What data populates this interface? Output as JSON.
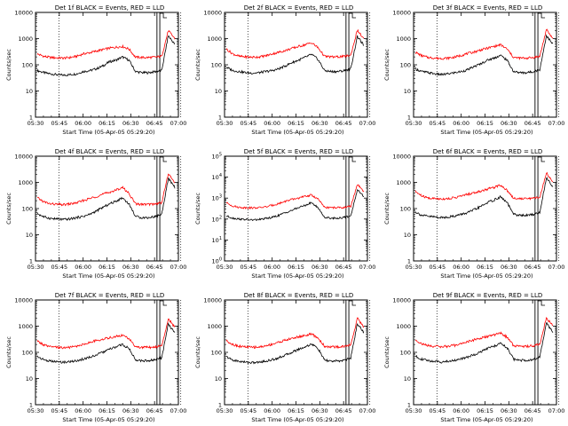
{
  "colors": {
    "events": "#000000",
    "lld": "#ff0000",
    "axis": "#000000"
  },
  "chart_data": [
    {
      "type": "line",
      "title": "Det 1f BLACK = Events, RED = LLD",
      "xlabel": "Start Time (05-Apr-05 05:29:20)",
      "ylabel": "Counts/sec",
      "yscale": "log",
      "ytick_style": "plain",
      "y_ticks": [
        "1",
        "10",
        "100",
        "1000",
        "10000"
      ],
      "x_ticks": [
        "05:30",
        "05:45",
        "06:00",
        "06:15",
        "06:30",
        "06:45",
        "07:00"
      ],
      "series": [
        {
          "name": "BLACK = Events",
          "values": [
            60,
            50,
            45,
            42,
            40,
            42,
            45,
            55,
            60,
            70,
            90,
            130,
            150,
            200,
            150,
            55,
            50,
            50,
            55,
            60,
            1300,
            600
          ]
        },
        {
          "name": "RED = LLD",
          "values": [
            260,
            210,
            190,
            185,
            180,
            190,
            210,
            260,
            290,
            330,
            380,
            430,
            470,
            500,
            400,
            195,
            190,
            190,
            195,
            210,
            2000,
            1000
          ]
        }
      ]
    },
    {
      "type": "line",
      "title": "Det 2f BLACK = Events, RED = LLD",
      "xlabel": "Start Time (05-Apr-05 05:29:20)",
      "ylabel": "Counts/sec",
      "yscale": "log",
      "ytick_style": "plain",
      "y_ticks": [
        "1",
        "10",
        "100",
        "1000",
        "10000"
      ],
      "x_ticks": [
        "05:30",
        "05:45",
        "06:00",
        "06:15",
        "06:30",
        "06:45",
        "07:00"
      ],
      "series": [
        {
          "name": "BLACK = Events",
          "values": [
            80,
            60,
            55,
            50,
            48,
            50,
            55,
            60,
            70,
            90,
            120,
            150,
            190,
            250,
            160,
            60,
            55,
            55,
            60,
            70,
            1200,
            550
          ]
        },
        {
          "name": "RED = LLD",
          "values": [
            400,
            260,
            210,
            200,
            195,
            200,
            220,
            260,
            300,
            350,
            420,
            500,
            580,
            700,
            450,
            210,
            200,
            200,
            210,
            230,
            2100,
            950
          ]
        }
      ]
    },
    {
      "type": "line",
      "title": "Det 3f BLACK = Events, RED = LLD",
      "xlabel": "Start Time (05-Apr-05 05:29:20)",
      "ylabel": "Counts/sec",
      "yscale": "log",
      "ytick_style": "plain",
      "y_ticks": [
        "1",
        "10",
        "100",
        "1000",
        "10000"
      ],
      "x_ticks": [
        "05:30",
        "05:45",
        "06:00",
        "06:15",
        "06:30",
        "06:45",
        "07:00"
      ],
      "series": [
        {
          "name": "BLACK = Events",
          "values": [
            70,
            55,
            50,
            45,
            42,
            45,
            50,
            55,
            65,
            85,
            110,
            150,
            180,
            230,
            150,
            55,
            50,
            50,
            55,
            65,
            1300,
            600
          ]
        },
        {
          "name": "RED = LLD",
          "values": [
            300,
            220,
            190,
            180,
            175,
            180,
            195,
            230,
            270,
            310,
            370,
            430,
            500,
            580,
            400,
            190,
            180,
            180,
            190,
            210,
            2200,
            1000
          ]
        }
      ]
    },
    {
      "type": "line",
      "title": "Det 4f BLACK = Events, RED = LLD",
      "xlabel": "Start Time (05-Apr-05 05:29:20)",
      "ylabel": "Counts/sec",
      "yscale": "log",
      "ytick_style": "plain",
      "y_ticks": [
        "1",
        "10",
        "100",
        "1000",
        "10000"
      ],
      "x_ticks": [
        "05:30",
        "05:45",
        "06:00",
        "06:15",
        "06:30",
        "06:45",
        "07:00"
      ],
      "series": [
        {
          "name": "BLACK = Events",
          "values": [
            65,
            48,
            42,
            40,
            38,
            40,
            45,
            50,
            60,
            80,
            110,
            150,
            190,
            260,
            150,
            50,
            45,
            45,
            50,
            60,
            1400,
            650
          ]
        },
        {
          "name": "RED = LLD",
          "values": [
            260,
            180,
            150,
            145,
            140,
            150,
            165,
            200,
            240,
            290,
            350,
            420,
            500,
            650,
            380,
            150,
            145,
            145,
            150,
            170,
            2100,
            1000
          ]
        }
      ]
    },
    {
      "type": "line",
      "title": "Det 5f BLACK = Events, RED = LLD",
      "xlabel": "Start Time (05-Apr-05 05:29:20)",
      "ylabel": "Counts/sec",
      "yscale": "log",
      "ytick_style": "power",
      "y_ticks": [
        "10^0",
        "10^1",
        "10^2",
        "10^3",
        "10^4",
        "10^5"
      ],
      "x_ticks": [
        "05:30",
        "05:45",
        "06:00",
        "06:15",
        "06:30",
        "06:45",
        "07:00"
      ],
      "series": [
        {
          "name": "BLACK = Events",
          "values": [
            140,
            110,
            100,
            95,
            90,
            95,
            105,
            120,
            150,
            200,
            260,
            350,
            450,
            600,
            350,
            120,
            110,
            110,
            120,
            140,
            2500,
            1200
          ]
        },
        {
          "name": "RED = LLD",
          "values": [
            600,
            420,
            360,
            350,
            340,
            350,
            380,
            450,
            550,
            700,
            850,
            1000,
            1200,
            1400,
            900,
            360,
            350,
            350,
            360,
            400,
            4500,
            2000
          ]
        }
      ]
    },
    {
      "type": "line",
      "title": "Det 6f BLACK = Events, RED = LLD",
      "xlabel": "Start Time (05-Apr-05 05:29:20)",
      "ylabel": "Counts/sec",
      "yscale": "log",
      "ytick_style": "plain",
      "y_ticks": [
        "1",
        "10",
        "100",
        "1000",
        "10000"
      ],
      "x_ticks": [
        "05:30",
        "05:45",
        "06:00",
        "06:15",
        "06:30",
        "06:45",
        "07:00"
      ],
      "series": [
        {
          "name": "BLACK = Events",
          "values": [
            75,
            55,
            50,
            48,
            45,
            48,
            52,
            60,
            70,
            90,
            120,
            170,
            210,
            280,
            170,
            60,
            55,
            55,
            60,
            70,
            1500,
            700
          ]
        },
        {
          "name": "RED = LLD",
          "values": [
            450,
            300,
            250,
            240,
            235,
            240,
            260,
            300,
            350,
            400,
            470,
            550,
            650,
            800,
            500,
            250,
            240,
            240,
            250,
            270,
            2300,
            1100
          ]
        }
      ]
    },
    {
      "type": "line",
      "title": "Det 7f BLACK = Events, RED = LLD",
      "xlabel": "Start Time (05-Apr-05 05:29:20)",
      "ylabel": "Counts/sec",
      "yscale": "log",
      "ytick_style": "plain",
      "y_ticks": [
        "1",
        "10",
        "100",
        "1000",
        "10000"
      ],
      "x_ticks": [
        "05:30",
        "05:45",
        "06:00",
        "06:15",
        "06:30",
        "06:45",
        "07:00"
      ],
      "series": [
        {
          "name": "BLACK = Events",
          "values": [
            70,
            52,
            46,
            43,
            42,
            44,
            48,
            55,
            65,
            80,
            100,
            130,
            160,
            200,
            140,
            52,
            48,
            48,
            52,
            62,
            1200,
            550
          ]
        },
        {
          "name": "RED = LLD",
          "values": [
            270,
            190,
            160,
            155,
            150,
            155,
            170,
            200,
            240,
            280,
            320,
            360,
            400,
            450,
            330,
            160,
            155,
            155,
            160,
            180,
            1900,
            900
          ]
        }
      ]
    },
    {
      "type": "line",
      "title": "Det 8f BLACK = Events, RED = LLD",
      "xlabel": "Start Time (05-Apr-05 05:29:20)",
      "ylabel": "Counts/sec",
      "yscale": "log",
      "ytick_style": "plain",
      "y_ticks": [
        "1",
        "10",
        "100",
        "1000",
        "10000"
      ],
      "x_ticks": [
        "05:30",
        "05:45",
        "06:00",
        "06:15",
        "06:30",
        "06:45",
        "07:00"
      ],
      "series": [
        {
          "name": "BLACK = Events",
          "values": [
            68,
            50,
            45,
            42,
            40,
            42,
            46,
            52,
            62,
            78,
            100,
            130,
            160,
            210,
            140,
            50,
            46,
            46,
            50,
            60,
            1250,
            580
          ]
        },
        {
          "name": "RED = LLD",
          "values": [
            280,
            200,
            170,
            160,
            155,
            160,
            175,
            205,
            245,
            290,
            340,
            390,
            440,
            500,
            350,
            170,
            160,
            160,
            170,
            190,
            2000,
            950
          ]
        }
      ]
    },
    {
      "type": "line",
      "title": "Det 9f BLACK = Events, RED = LLD",
      "xlabel": "Start Time (05-Apr-05 05:29:20)",
      "ylabel": "Counts/sec",
      "yscale": "log",
      "ytick_style": "plain",
      "y_ticks": [
        "1",
        "10",
        "100",
        "1000",
        "10000"
      ],
      "x_ticks": [
        "05:30",
        "05:45",
        "06:00",
        "06:15",
        "06:30",
        "06:45",
        "07:00"
      ],
      "series": [
        {
          "name": "BLACK = Events",
          "values": [
            72,
            54,
            48,
            45,
            43,
            45,
            50,
            56,
            66,
            82,
            105,
            140,
            170,
            220,
            150,
            54,
            50,
            50,
            54,
            64,
            1300,
            600
          ]
        },
        {
          "name": "RED = LLD",
          "values": [
            300,
            210,
            180,
            170,
            165,
            170,
            185,
            215,
            255,
            300,
            350,
            400,
            460,
            550,
            380,
            180,
            170,
            170,
            180,
            200,
            2100,
            1000
          ]
        }
      ]
    }
  ]
}
